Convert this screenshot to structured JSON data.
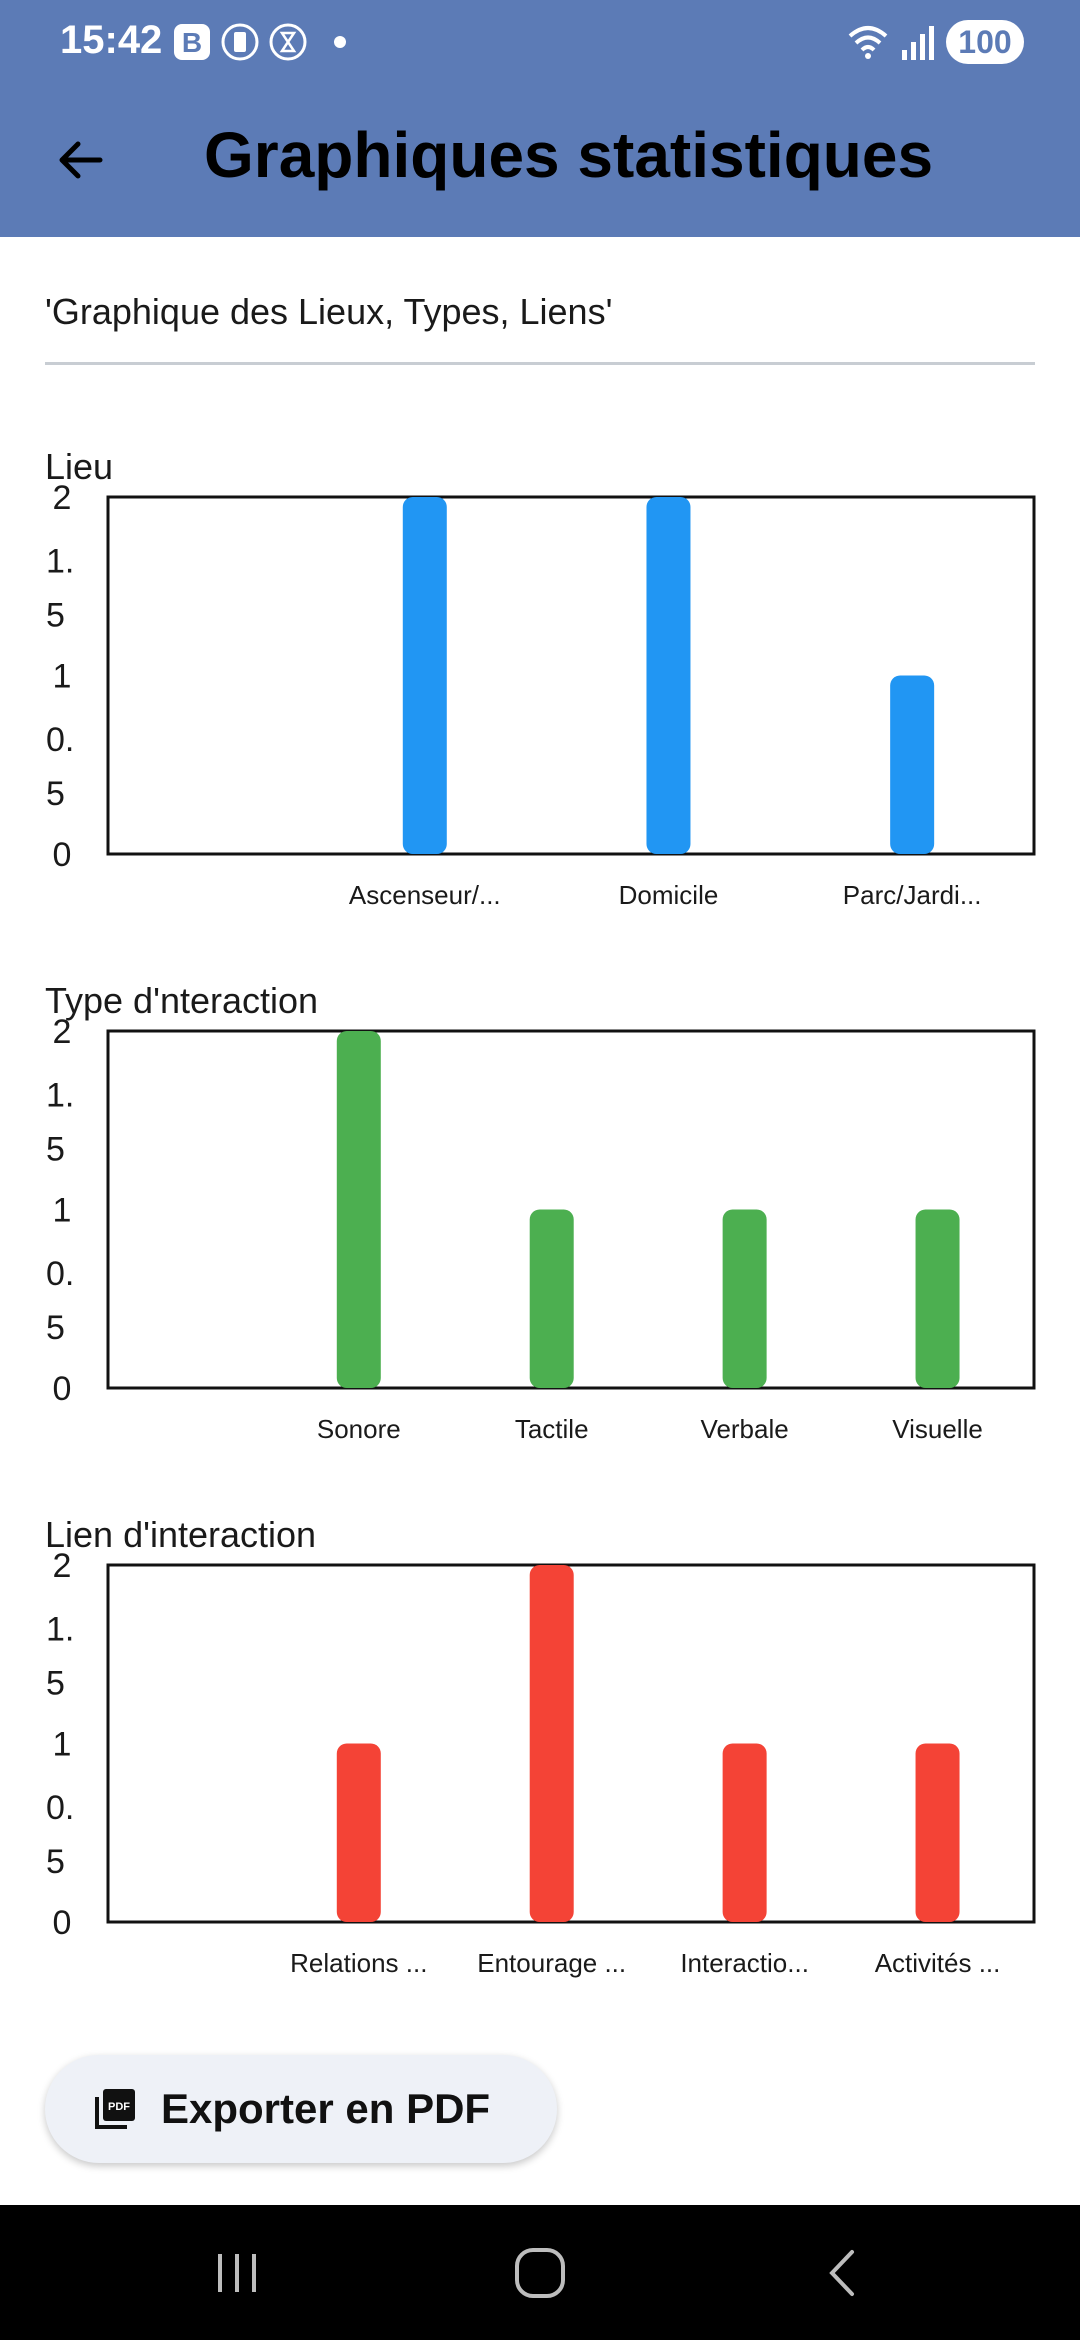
{
  "status_bar": {
    "time": "15:42",
    "battery": "100",
    "icons": [
      "b-badge-icon",
      "vibrate-icon",
      "timer-icon",
      "dot-icon",
      "wifi-icon",
      "signal-icon",
      "battery-icon"
    ]
  },
  "header": {
    "title": "Graphiques statistiques",
    "back_icon": "back-arrow-icon"
  },
  "subtitle": "'Graphique des Lieux, Types, Liens'",
  "colors": {
    "appbar": "#5c7bb6",
    "lieu_bar": "#2196f3",
    "type_bar": "#4caf50",
    "lien_bar": "#f44336"
  },
  "chart_data": [
    {
      "type": "bar",
      "title": "Lieu",
      "categories": [
        "Ascenseur/...",
        "Domicile",
        "Parc/Jardi..."
      ],
      "values": [
        2,
        2,
        1
      ],
      "ylim": [
        0,
        2
      ],
      "y_tick_labels": [
        [
          "2"
        ],
        [
          "1.",
          "5"
        ],
        [
          "1"
        ],
        [
          "0.",
          "5"
        ],
        [
          "0"
        ]
      ],
      "color": "#2196f3",
      "xlabel": "",
      "ylabel": ""
    },
    {
      "type": "bar",
      "title": "Type d'nteraction",
      "categories": [
        "Sonore",
        "Tactile",
        "Verbale",
        "Visuelle"
      ],
      "values": [
        2,
        1,
        1,
        1
      ],
      "ylim": [
        0,
        2
      ],
      "y_tick_labels": [
        [
          "2"
        ],
        [
          "1.",
          "5"
        ],
        [
          "1"
        ],
        [
          "0.",
          "5"
        ],
        [
          "0"
        ]
      ],
      "color": "#4caf50",
      "xlabel": "",
      "ylabel": ""
    },
    {
      "type": "bar",
      "title": "Lien d'interaction",
      "categories": [
        "Relations ...",
        "Entourage ...",
        "Interactio...",
        "Activités ..."
      ],
      "values": [
        1,
        2,
        1,
        1
      ],
      "ylim": [
        0,
        2
      ],
      "y_tick_labels": [
        [
          "2"
        ],
        [
          "1.",
          "5"
        ],
        [
          "1"
        ],
        [
          "0.",
          "5"
        ],
        [
          "0"
        ]
      ],
      "color": "#f44336",
      "xlabel": "",
      "ylabel": ""
    }
  ],
  "export": {
    "label": "Exporter en PDF",
    "icon": "pdf-icon"
  },
  "nav_bar": {
    "buttons": [
      "recents-icon",
      "home-icon",
      "back-icon"
    ]
  }
}
